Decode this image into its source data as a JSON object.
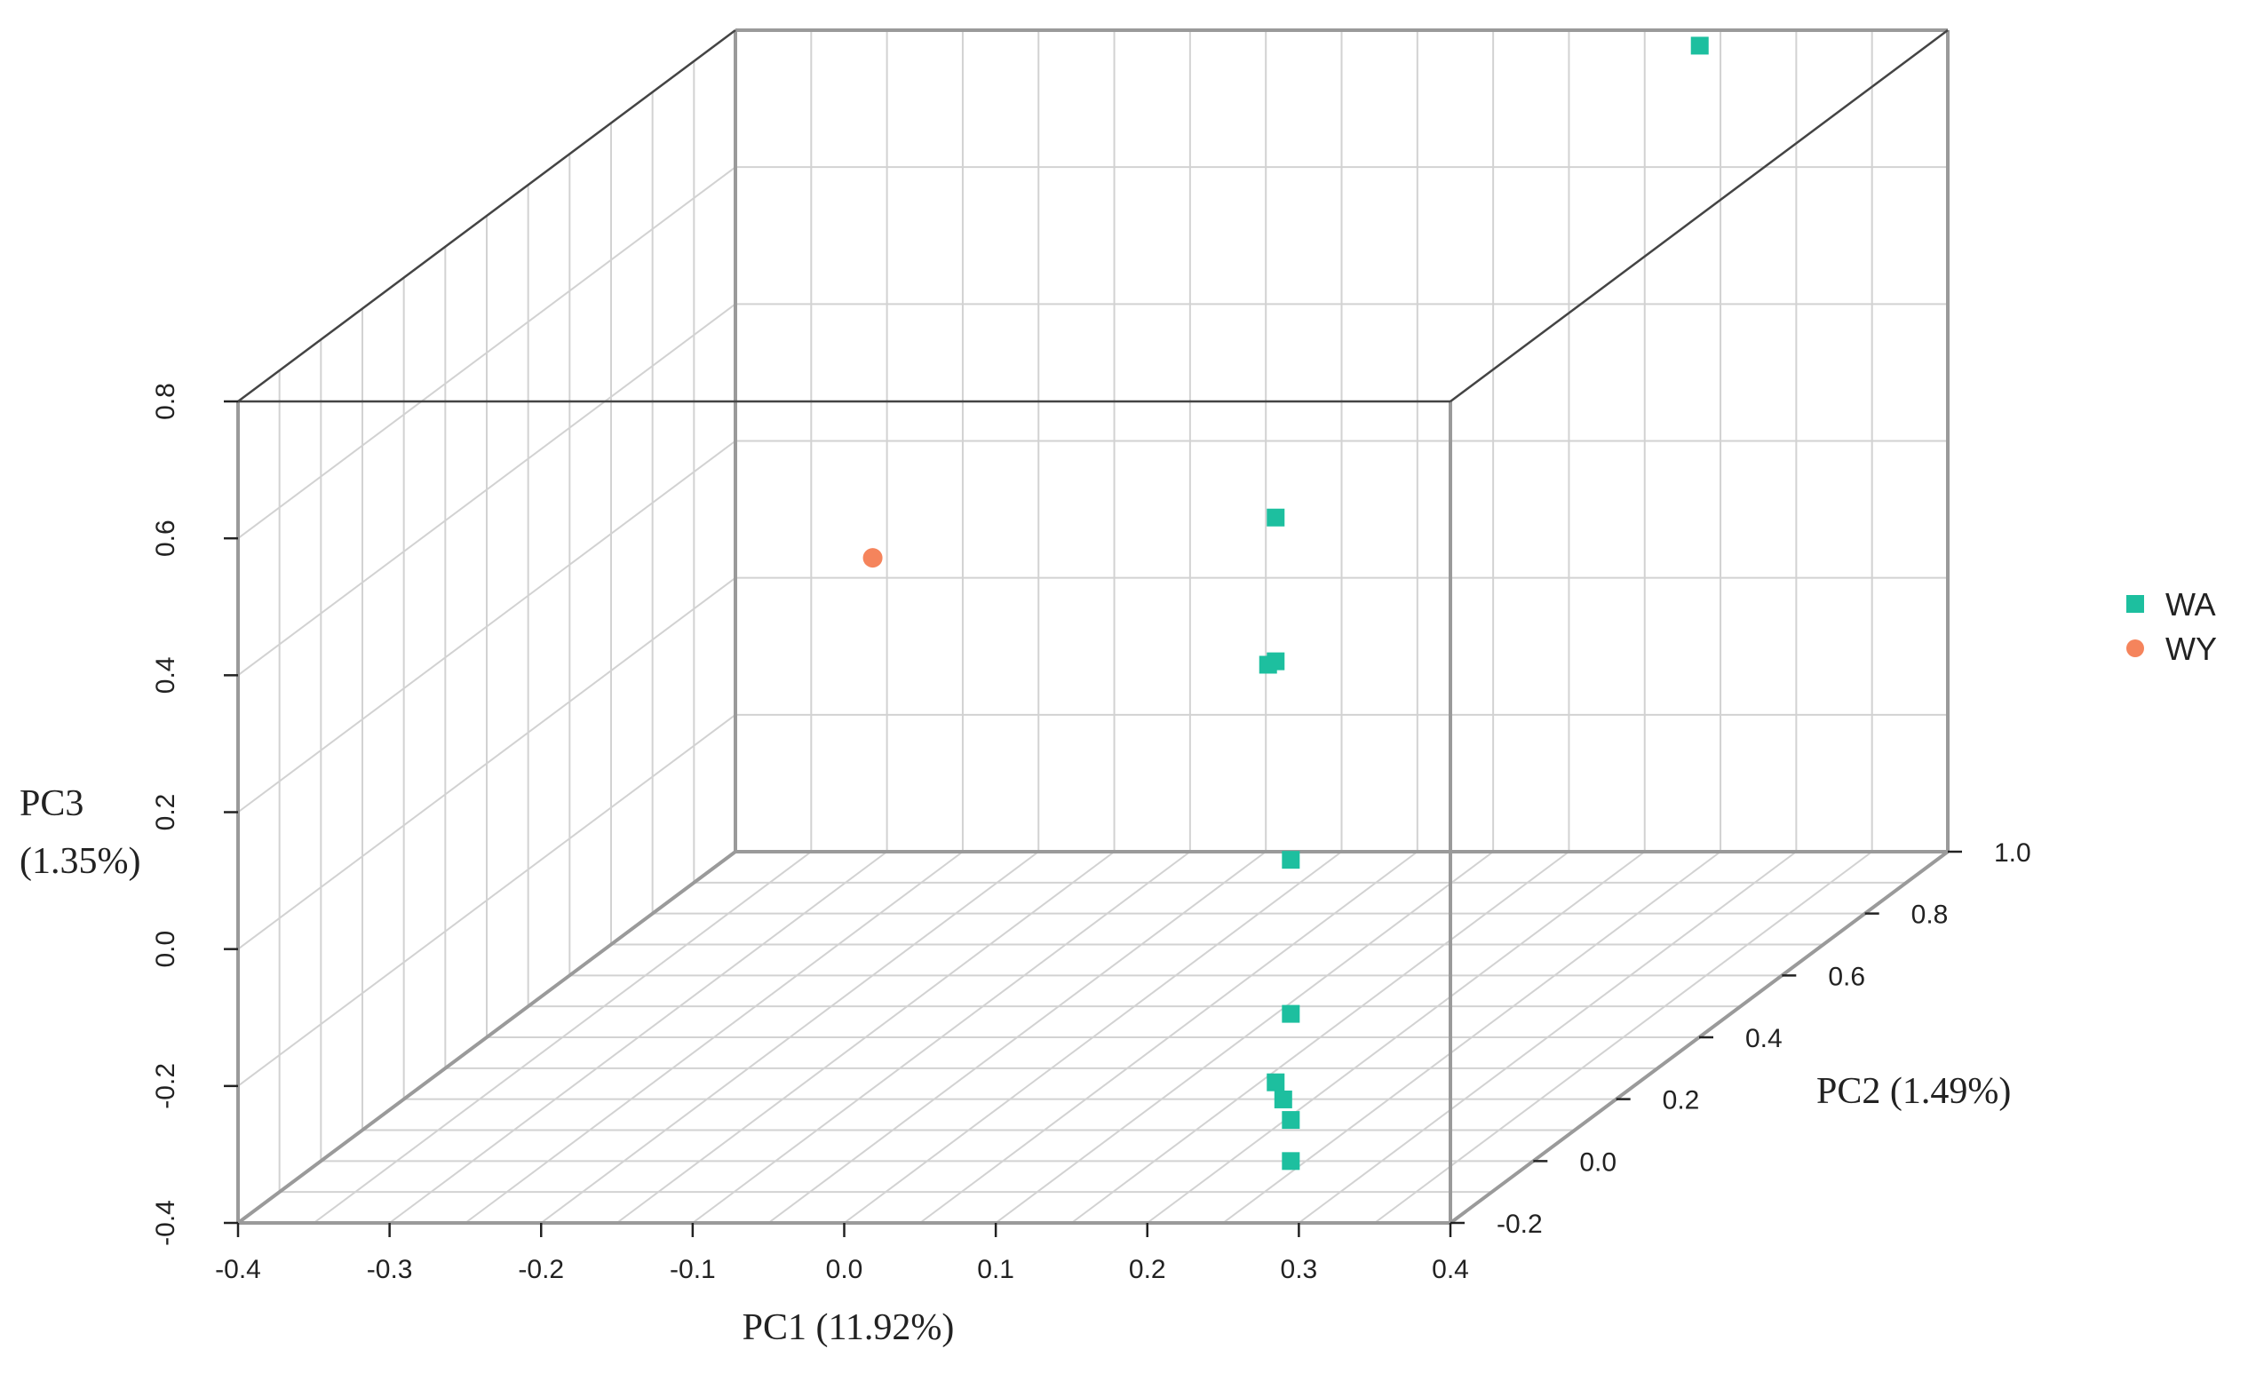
{
  "chart_data": {
    "type": "scatter",
    "title": "",
    "xlabel": "PC1 (11.92%)",
    "ylabel": "PC2 (1.49%)",
    "zlabel_line1": "PC3",
    "zlabel_line2": "(1.35%)",
    "x_ticks": [
      "-0.4",
      "-0.3",
      "-0.2",
      "-0.1",
      "0.0",
      "0.1",
      "0.2",
      "0.3",
      "0.4"
    ],
    "y_ticks": [
      "-0.2",
      "0.0",
      "0.2",
      "0.4",
      "0.6",
      "0.8",
      "1.0"
    ],
    "z_ticks": [
      "-0.4",
      "-0.2",
      "0.0",
      "0.2",
      "0.4",
      "0.6",
      "0.8"
    ],
    "xlim": [
      -0.4,
      0.4
    ],
    "ylim": [
      -0.2,
      1.0
    ],
    "zlim": [
      -0.4,
      0.8
    ],
    "grid": true,
    "legend_position": "right",
    "series": [
      {
        "name": "WA",
        "marker": "square",
        "color": "#1dbf9f",
        "points": [
          {
            "x": 0.24,
            "y": 0.0,
            "z": -0.4
          },
          {
            "x": 0.24,
            "y": 0.0,
            "z": -0.34
          },
          {
            "x": 0.235,
            "y": 0.0,
            "z": -0.31
          },
          {
            "x": 0.23,
            "y": 0.0,
            "z": -0.285
          },
          {
            "x": 0.24,
            "y": 0.0,
            "z": -0.185
          },
          {
            "x": 0.24,
            "y": 0.0,
            "z": 0.04
          },
          {
            "x": 0.23,
            "y": 0.0,
            "z": 0.33
          },
          {
            "x": 0.225,
            "y": 0.0,
            "z": 0.325
          },
          {
            "x": 0.23,
            "y": 0.0,
            "z": 0.54
          },
          {
            "x": 0.25,
            "y": 0.95,
            "z": 0.8
          }
        ]
      },
      {
        "name": "WY",
        "marker": "circle",
        "color": "#f5845c",
        "points": [
          {
            "x": -0.2,
            "y": 0.6,
            "z": 0.21
          }
        ]
      }
    ]
  }
}
